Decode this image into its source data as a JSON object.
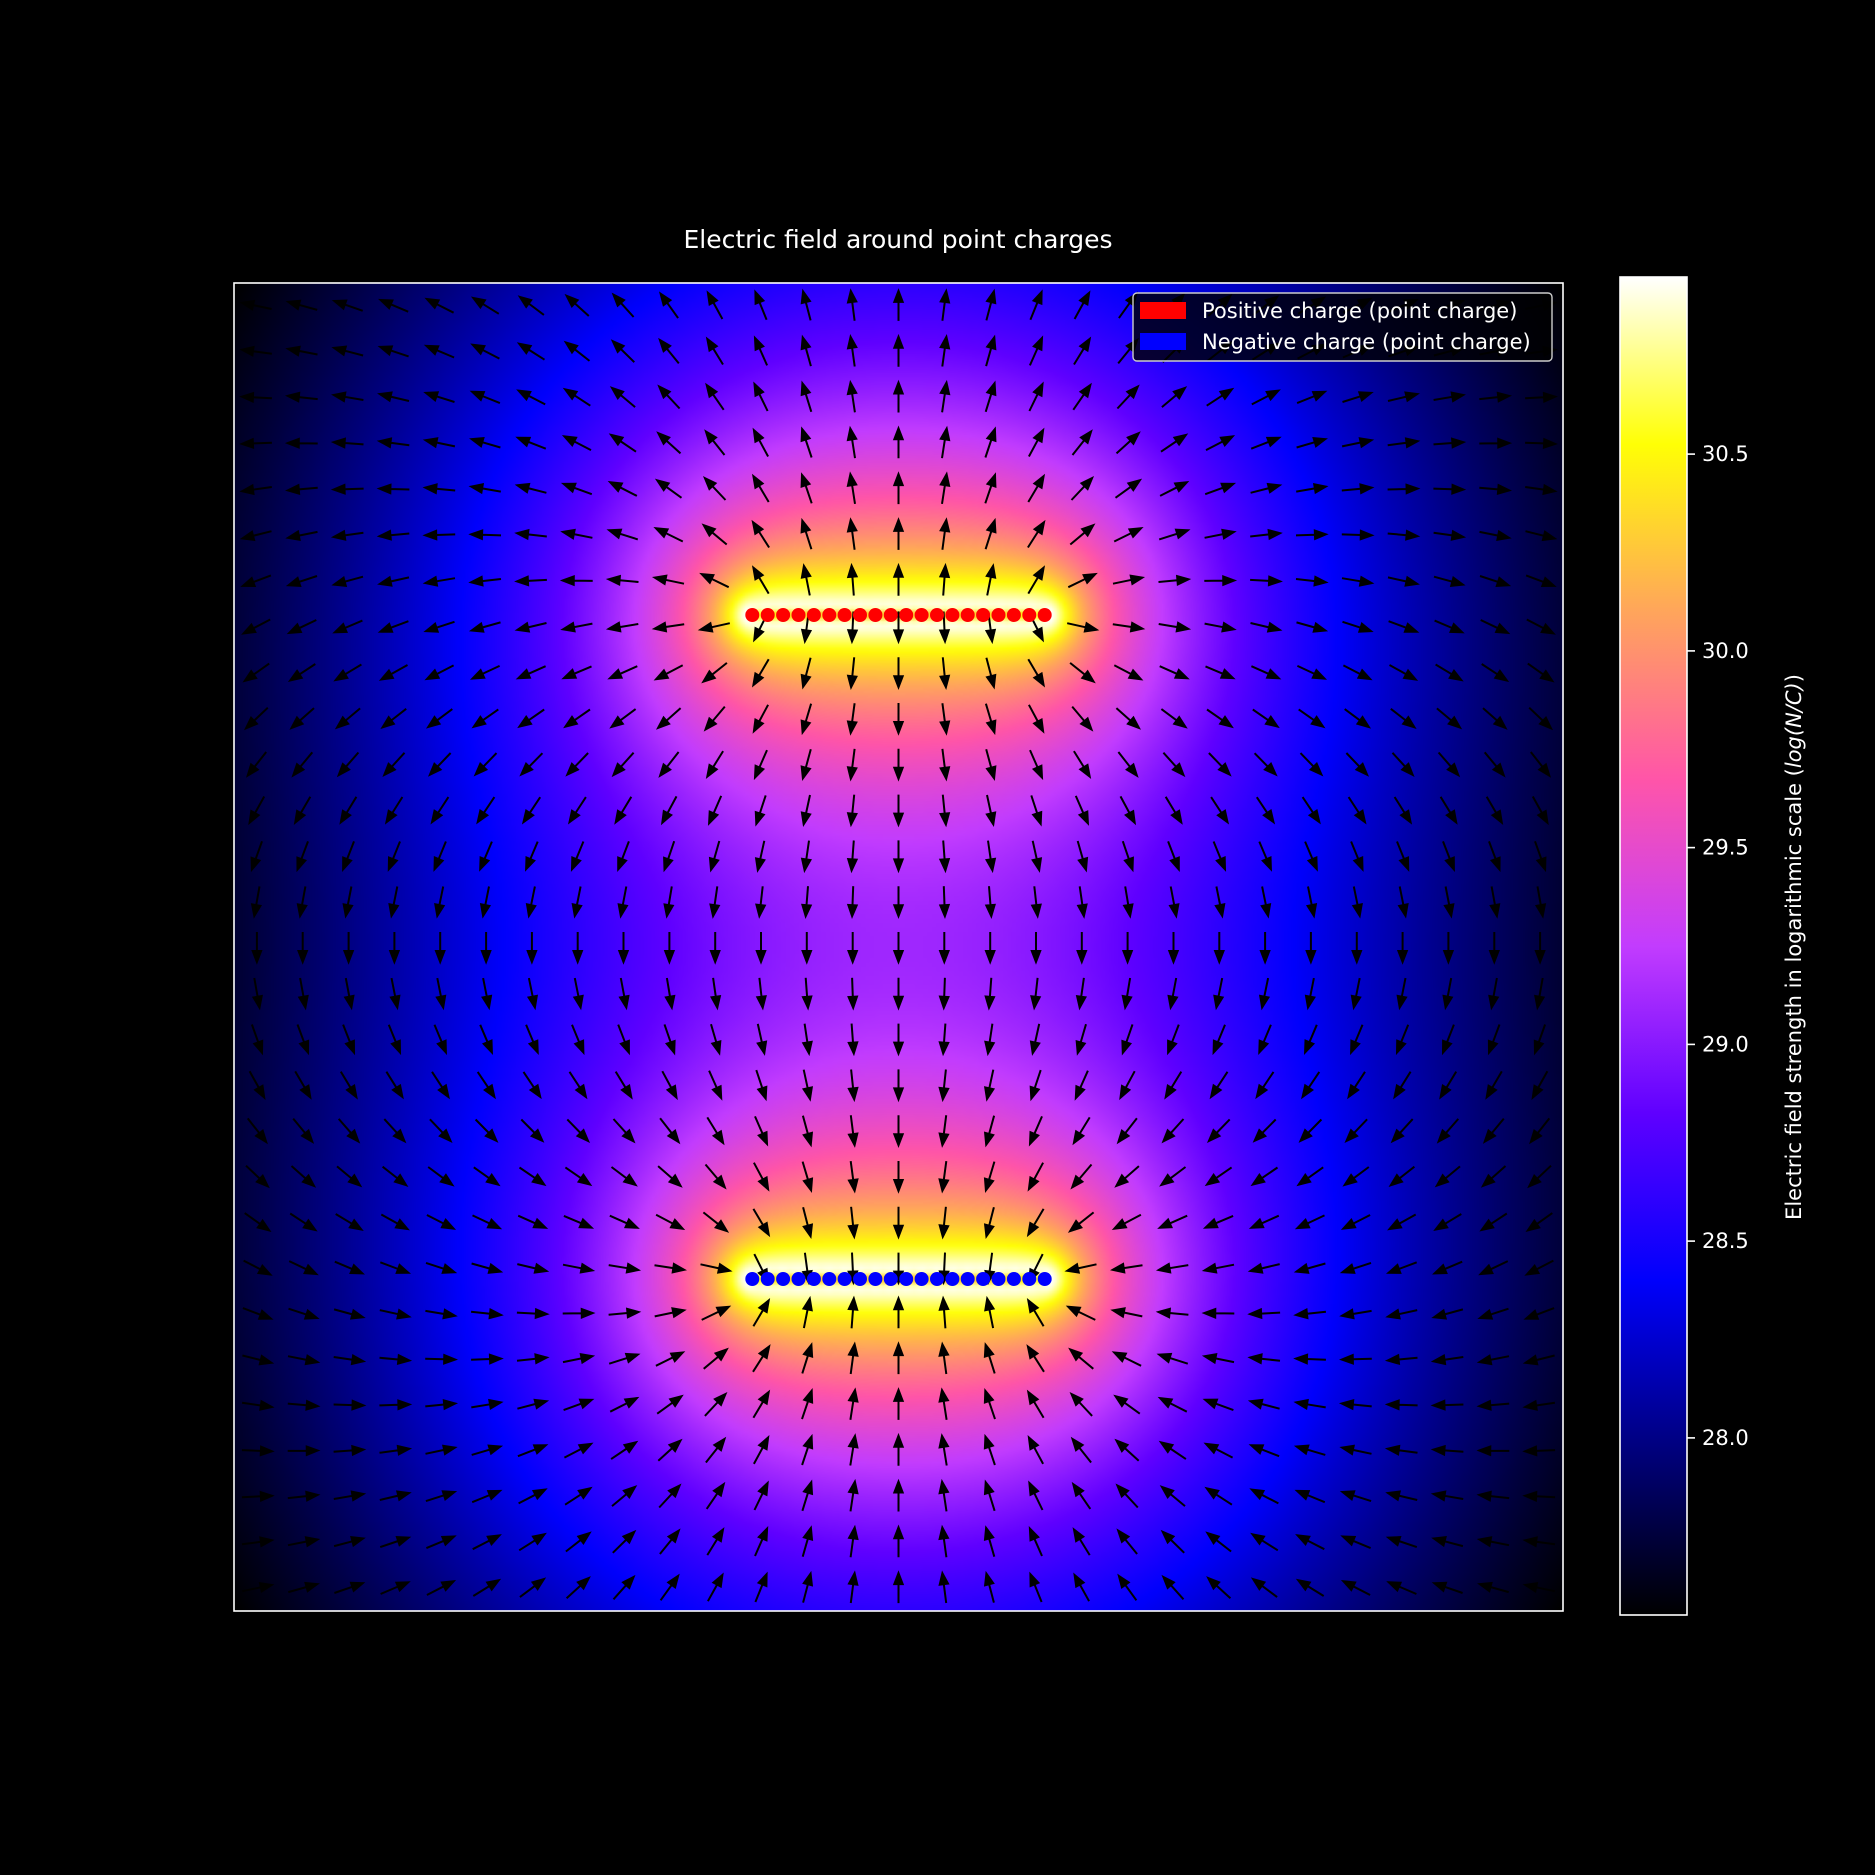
{
  "chart_data": {
    "type": "heatmap",
    "title": "Electric field around point charges",
    "xlabel": "",
    "ylabel": "",
    "grid": false,
    "axes_ticks_visible": false,
    "overlay": "quiver (electric field direction arrows)",
    "field_model": "two finite line charges: positive line above, negative line below; field strength shown as log10 magnitude",
    "colormap": "gnuplot2",
    "colorbar": {
      "label": "Electric field strength in logarithmic scale (log(N/C))",
      "label_prefix": "Electric field strength in logarithmic scale (",
      "label_math": "log(N/C)",
      "label_suffix": ")",
      "ticks": [
        "28.0",
        "28.5",
        "29.0",
        "29.5",
        "30.0",
        "30.5"
      ],
      "tick_values": [
        28.0,
        28.5,
        29.0,
        29.5,
        30.0,
        30.5
      ],
      "range": [
        27.55,
        30.95
      ],
      "position": "right"
    },
    "legend": {
      "position": "top-right",
      "entries": [
        {
          "label": "Positive charge (point charge)",
          "color": "#ff0000"
        },
        {
          "label": "Negative charge (point charge)",
          "color": "#0000ff"
        }
      ]
    },
    "series": [
      {
        "name": "Positive charge (point charge)",
        "color": "#ff0000",
        "charge_sign": 1,
        "count": 20,
        "x_range": [
          -0.55,
          0.55
        ],
        "y": 1.25
      },
      {
        "name": "Negative charge (point charge)",
        "color": "#0000ff",
        "charge_sign": -1,
        "count": 20,
        "x_range": [
          -0.55,
          0.55
        ],
        "y": -1.25
      }
    ],
    "xlim": [
      -2.5,
      2.5
    ],
    "ylim": [
      -2.5,
      2.5
    ],
    "quiver_grid": [
      29,
      29
    ]
  },
  "colors": {
    "background": "#000000",
    "axes_frame": "#ffffff",
    "arrow": "#000000"
  }
}
